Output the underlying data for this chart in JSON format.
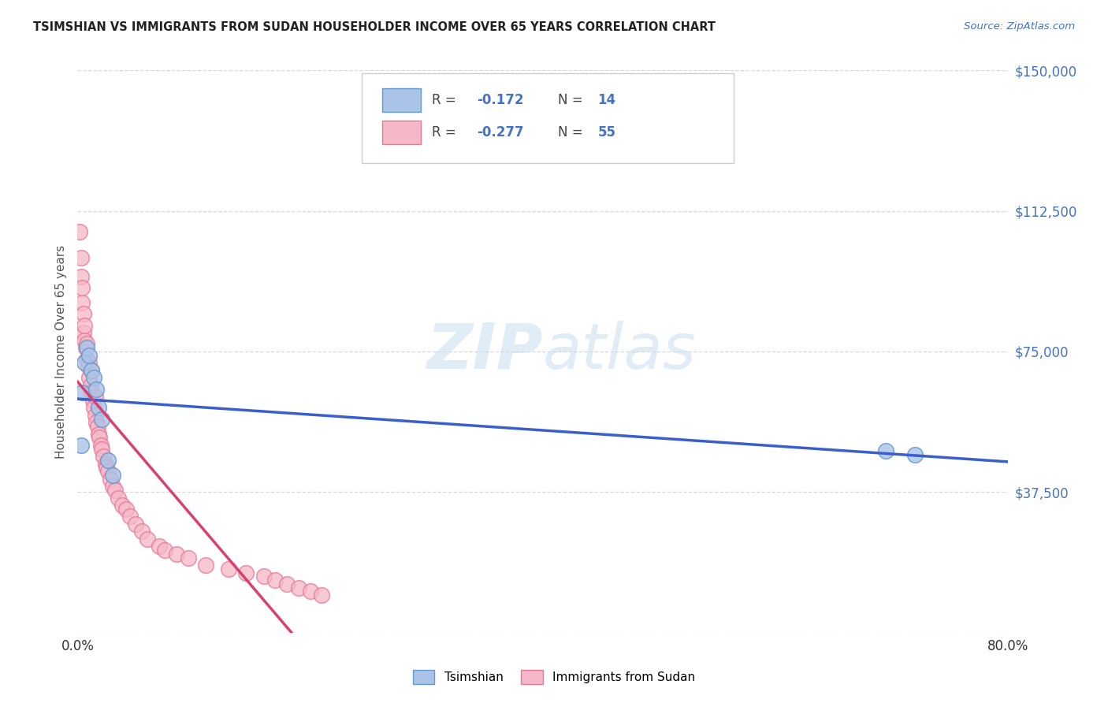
{
  "title": "TSIMSHIAN VS IMMIGRANTS FROM SUDAN HOUSEHOLDER INCOME OVER 65 YEARS CORRELATION CHART",
  "source": "Source: ZipAtlas.com",
  "ylabel": "Householder Income Over 65 years",
  "xlim": [
    0,
    0.8
  ],
  "ylim": [
    0,
    150000
  ],
  "yticks": [
    0,
    37500,
    75000,
    112500,
    150000
  ],
  "ytick_labels": [
    "",
    "$37,500",
    "$75,000",
    "$112,500",
    "$150,000"
  ],
  "xticks": [
    0.0,
    0.1,
    0.2,
    0.3,
    0.4,
    0.5,
    0.6,
    0.7,
    0.8
  ],
  "background_color": "#ffffff",
  "grid_color": "#d8d8d8",
  "tsimshian_color": "#aac4e8",
  "tsimshian_edge": "#6699cc",
  "sudan_color": "#f5b8c8",
  "sudan_edge": "#e87898",
  "trend_blue": "#3a5fcd",
  "trend_pink": "#d94070",
  "watermark_color": "#c8dff0",
  "legend_label_1": "Tsimshian",
  "legend_label_2": "Immigrants from Sudan",
  "tsimshian_R": -0.172,
  "tsimshian_N": 14,
  "sudan_R": -0.277,
  "sudan_N": 55,
  "tsimshian_x": [
    0.003,
    0.004,
    0.006,
    0.008,
    0.01,
    0.012,
    0.014,
    0.016,
    0.018,
    0.021,
    0.026,
    0.03,
    0.695,
    0.72
  ],
  "tsimshian_y": [
    50000,
    64000,
    72000,
    76000,
    74000,
    70000,
    68000,
    65000,
    60000,
    57000,
    46000,
    42000,
    48500,
    47500
  ],
  "sudan_x": [
    0.002,
    0.003,
    0.003,
    0.004,
    0.004,
    0.005,
    0.005,
    0.006,
    0.006,
    0.007,
    0.008,
    0.008,
    0.009,
    0.01,
    0.01,
    0.011,
    0.012,
    0.012,
    0.013,
    0.014,
    0.015,
    0.015,
    0.016,
    0.017,
    0.018,
    0.019,
    0.02,
    0.021,
    0.022,
    0.024,
    0.025,
    0.026,
    0.028,
    0.03,
    0.032,
    0.035,
    0.038,
    0.042,
    0.045,
    0.05,
    0.055,
    0.06,
    0.07,
    0.075,
    0.085,
    0.095,
    0.11,
    0.13,
    0.145,
    0.16,
    0.17,
    0.18,
    0.19,
    0.2,
    0.21
  ],
  "sudan_y": [
    107000,
    95000,
    100000,
    88000,
    92000,
    85000,
    80000,
    78000,
    82000,
    76000,
    73000,
    77000,
    71000,
    68000,
    72000,
    66000,
    64000,
    70000,
    62000,
    60000,
    58000,
    63000,
    56000,
    55000,
    53000,
    52000,
    50000,
    49000,
    47000,
    45000,
    44000,
    43000,
    41000,
    39000,
    38000,
    36000,
    34000,
    33000,
    31000,
    29000,
    27000,
    25000,
    23000,
    22000,
    21000,
    20000,
    18000,
    17000,
    16000,
    15000,
    14000,
    13000,
    12000,
    11000,
    10000
  ]
}
